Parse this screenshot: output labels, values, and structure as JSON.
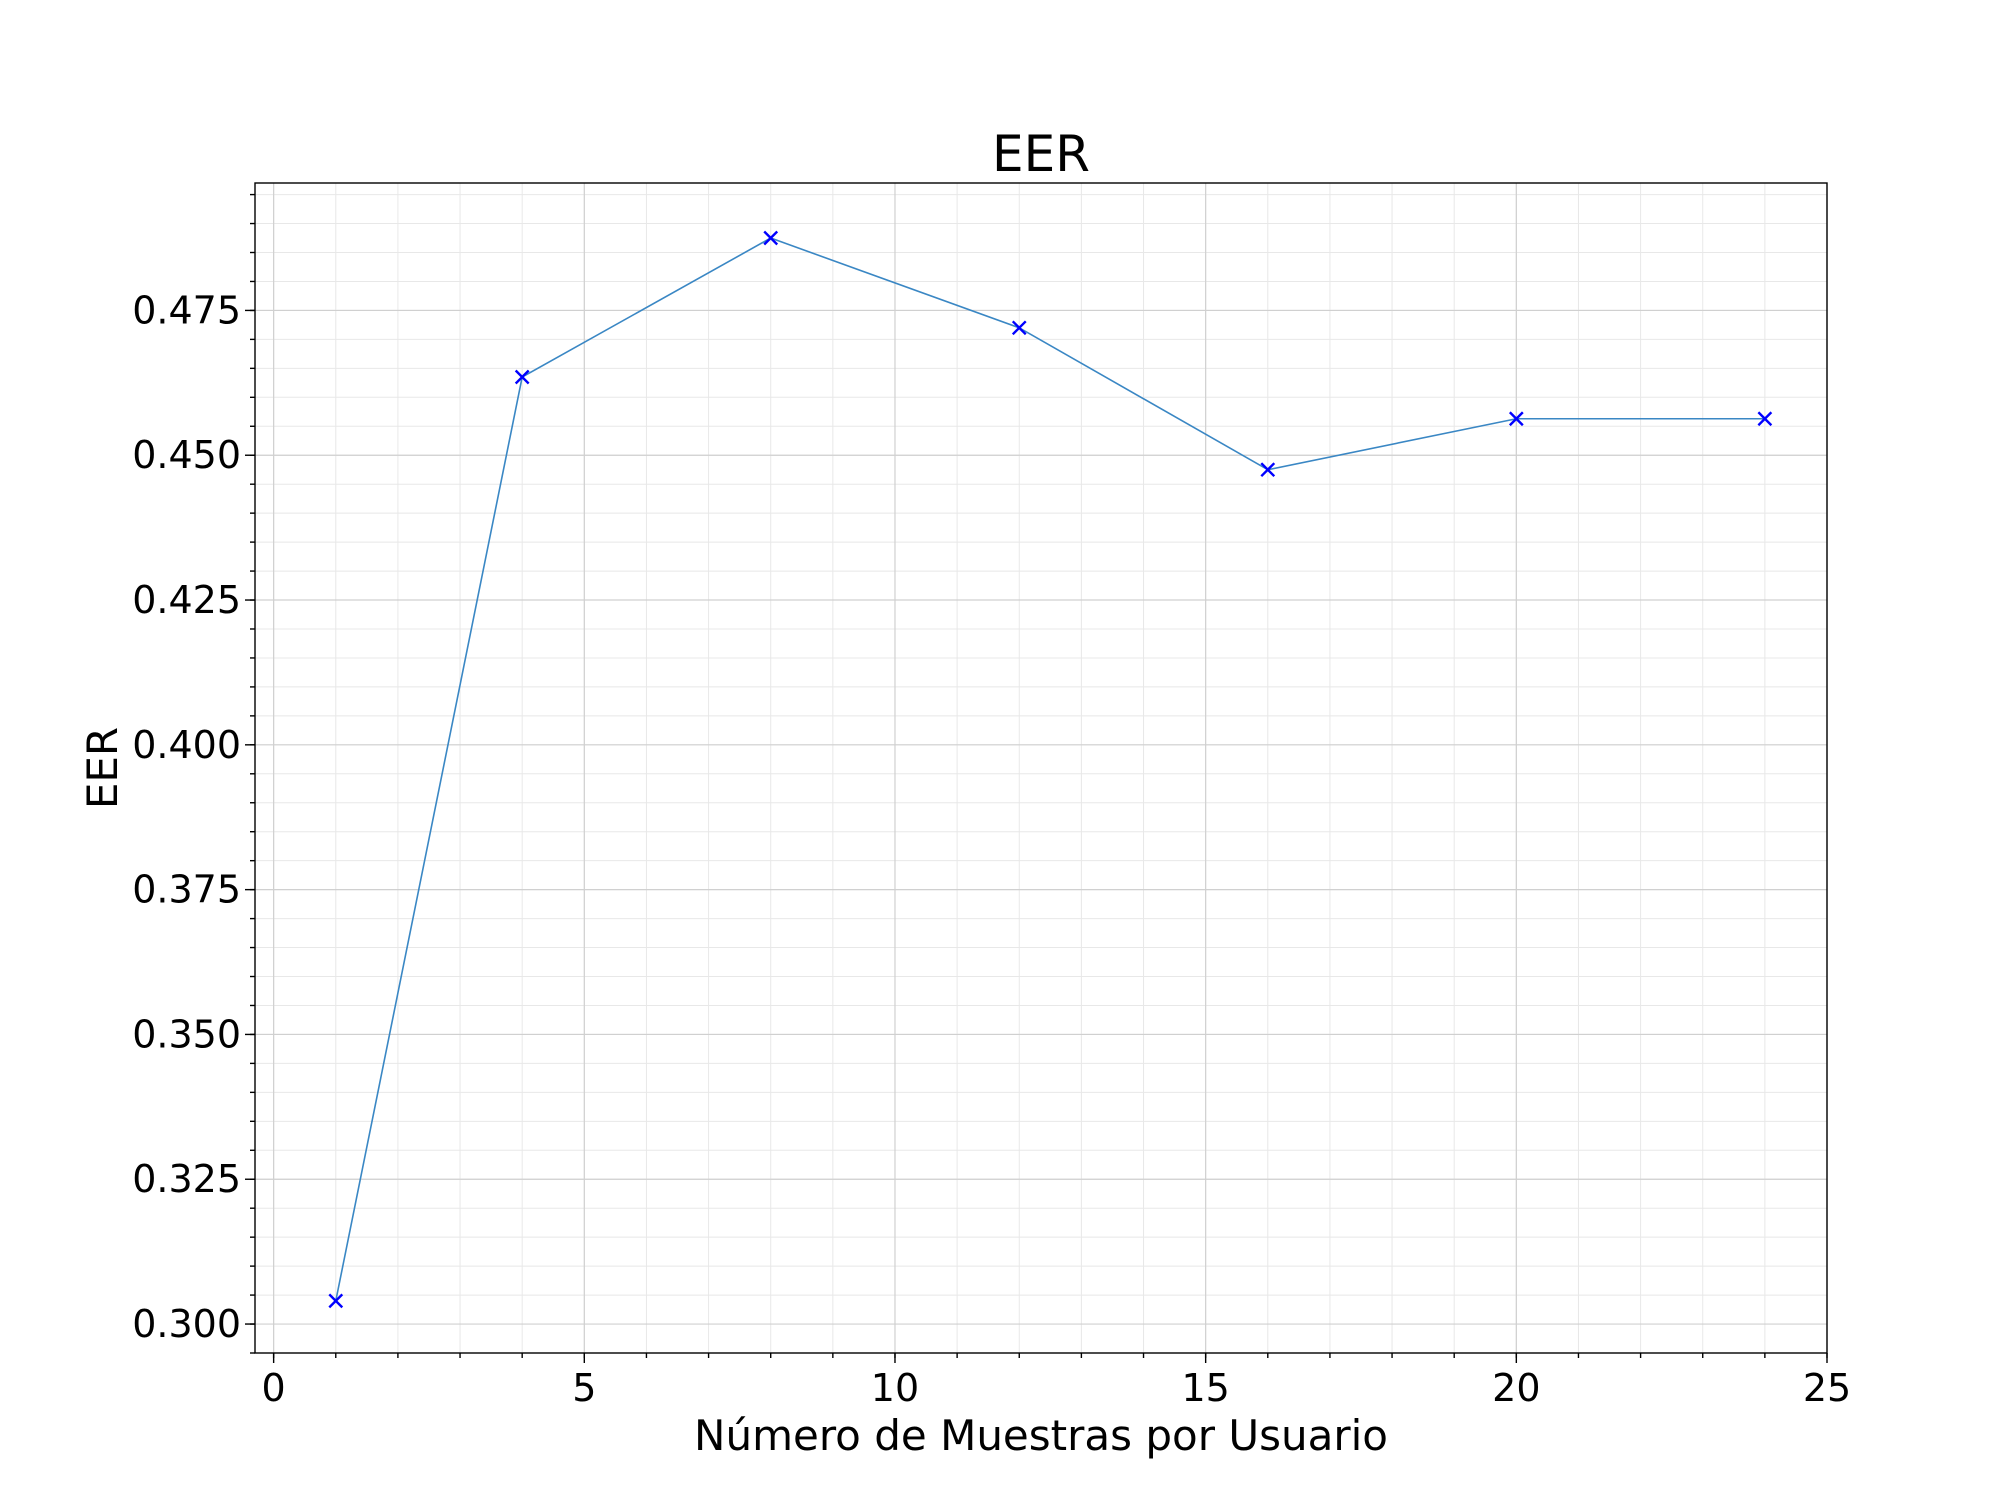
{
  "chart_data": {
    "type": "line",
    "title": "EER",
    "xlabel": "Número de Muestras por Usuario",
    "ylabel": "EER",
    "xlim": [
      -0.3,
      25.0
    ],
    "ylim": [
      0.295,
      0.497
    ],
    "xticks": [
      0,
      5,
      10,
      15,
      20,
      25
    ],
    "xtick_labels": [
      "0",
      "5",
      "10",
      "15",
      "20",
      "25"
    ],
    "yticks": [
      0.3,
      0.325,
      0.35,
      0.375,
      0.4,
      0.425,
      0.45,
      0.475
    ],
    "ytick_labels": [
      "0.300",
      "0.325",
      "0.350",
      "0.375",
      "0.400",
      "0.425",
      "0.450",
      "0.475"
    ],
    "x_minor_step": 1,
    "y_minor_step": 0.005,
    "grid": true,
    "legend": false,
    "series": [
      {
        "x": [
          1,
          4,
          8,
          12,
          16,
          20,
          24
        ],
        "values": [
          0.304,
          0.4635,
          0.4875,
          0.472,
          0.4475,
          0.4563,
          0.4563
        ],
        "line_color": "#3a87c4",
        "marker": "x",
        "marker_color": "#0000ff"
      }
    ]
  }
}
